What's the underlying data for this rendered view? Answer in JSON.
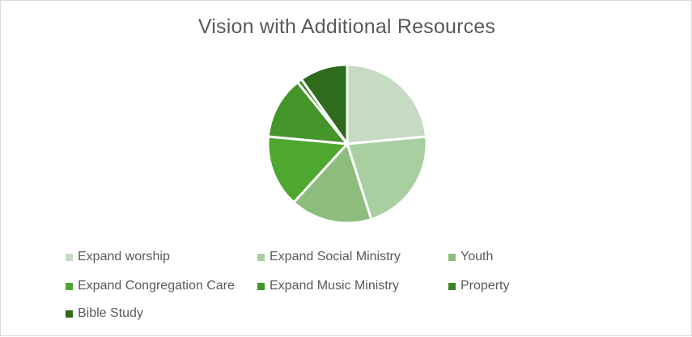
{
  "chart_data": {
    "type": "pie",
    "title": "Vision with Additional Resources",
    "categories": [
      "Expand worship",
      "Expand Social Ministry",
      "Youth",
      "Expand Congregation Care",
      "Expand Music Ministry",
      "Property",
      "Bible Study"
    ],
    "values": [
      24,
      22,
      17,
      15,
      13,
      1,
      10
    ],
    "colors": [
      "#c5dcc2",
      "#a9cfa1",
      "#8cbd7c",
      "#4ea72e",
      "#44952a",
      "#3b8525",
      "#2e6b1c"
    ],
    "legend_position": "bottom",
    "slice_border_color": "#ffffff"
  }
}
